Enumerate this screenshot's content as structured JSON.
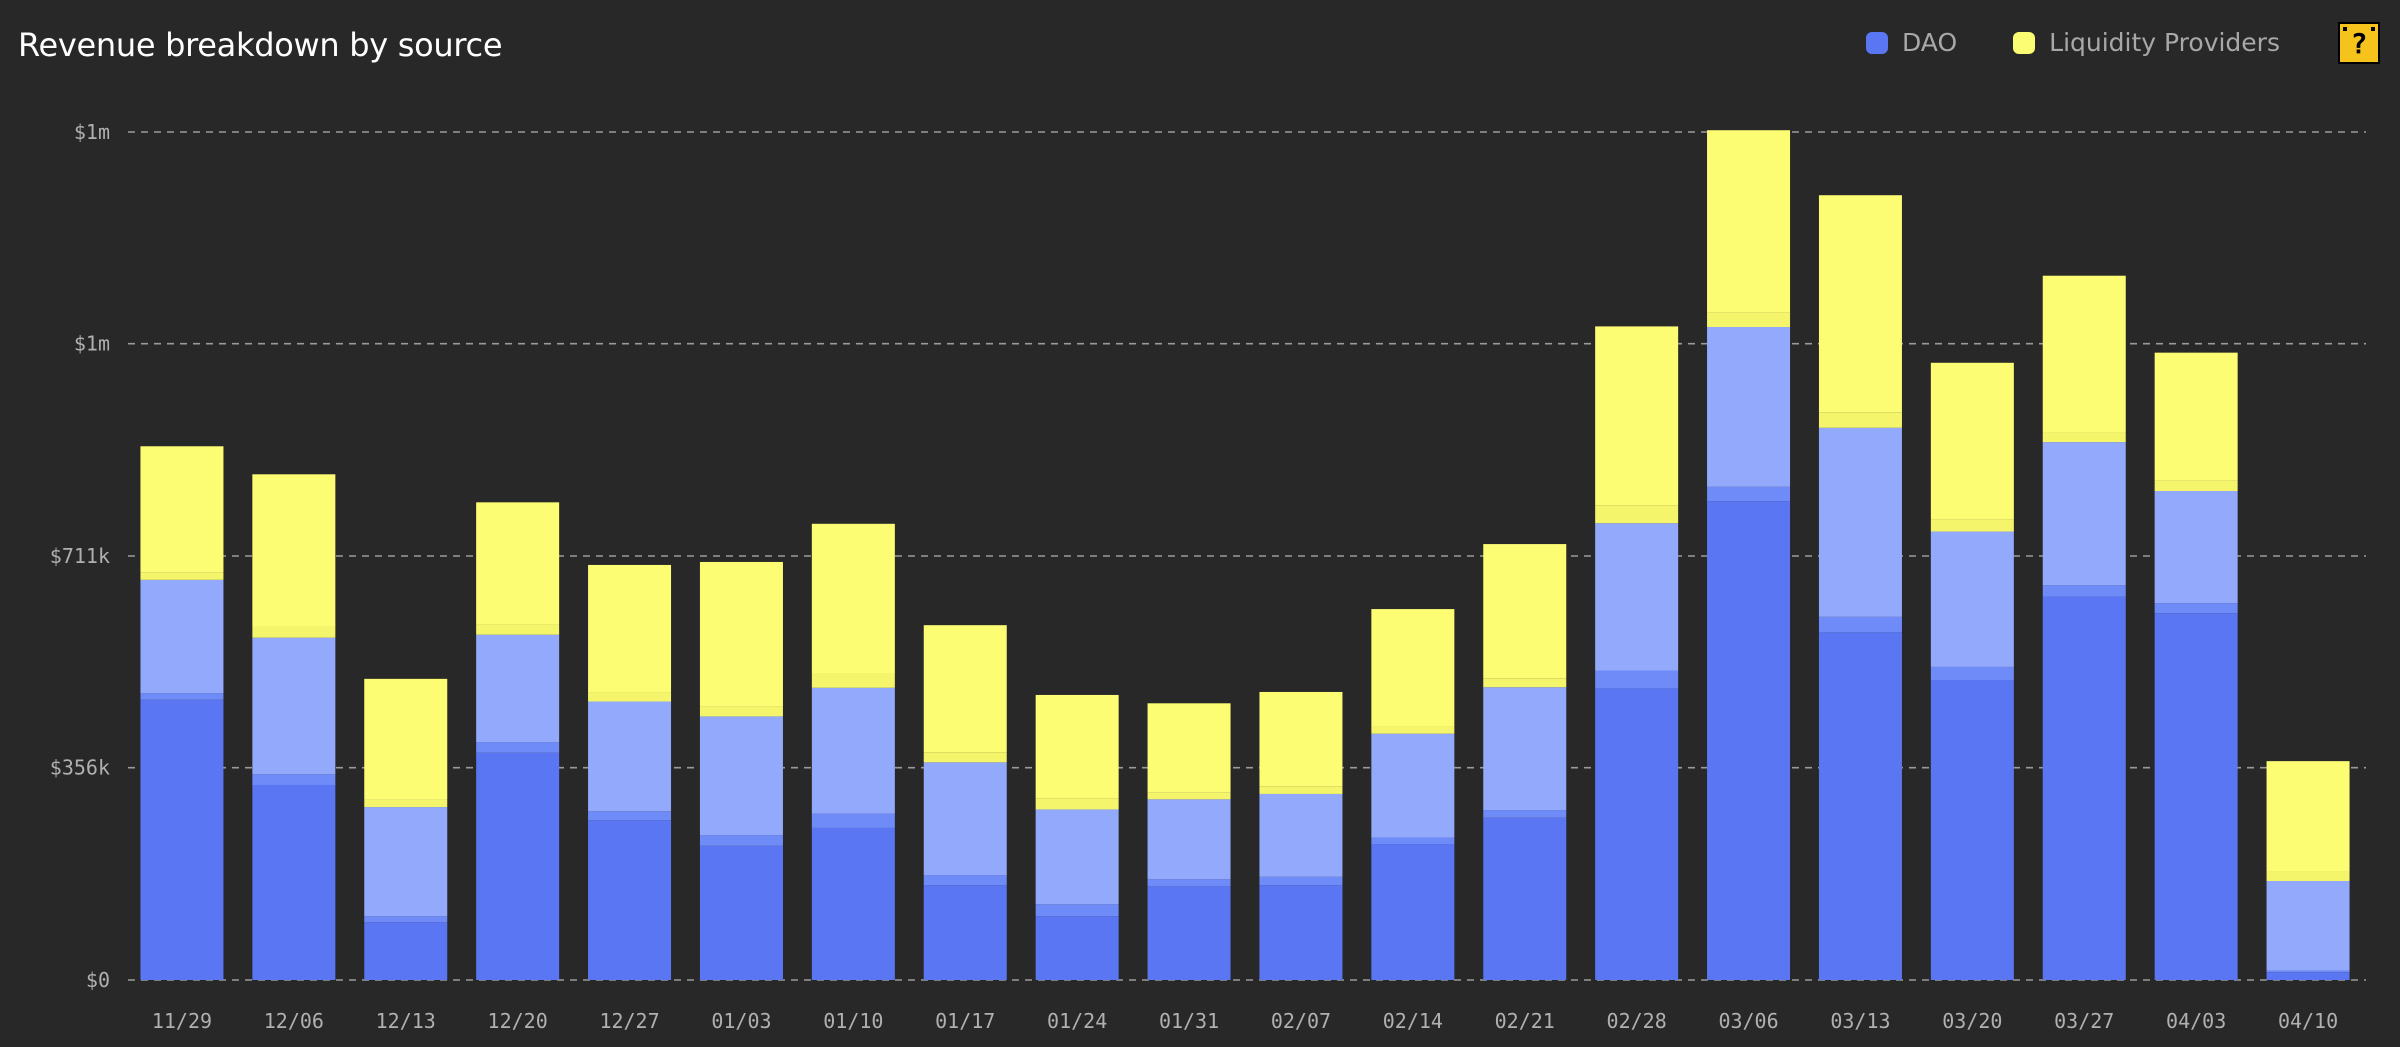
{
  "header": {
    "title": "Revenue breakdown by source",
    "help_icon": "question-block-icon"
  },
  "legend": [
    {
      "label": "DAO",
      "color": "#5a76f2"
    },
    {
      "label": "Liquidity Providers",
      "color": "#fdfd74"
    }
  ],
  "colors": {
    "background": "#282828",
    "dao_dark": "#5a76f2",
    "dao_mid": "#6e8bf8",
    "dao_light": "#92a9fc",
    "lp_light": "#f4f56a",
    "lp": "#fdfd74",
    "grid": "#9a9a9a"
  },
  "chart_data": {
    "type": "bar",
    "stacked": true,
    "categories": [
      "11/29",
      "12/06",
      "12/13",
      "12/20",
      "12/27",
      "01/03",
      "01/10",
      "01/17",
      "01/24",
      "01/31",
      "02/07",
      "02/14",
      "02/21",
      "02/28",
      "03/06",
      "03/13",
      "03/20",
      "03/27",
      "04/03",
      "04/10"
    ],
    "series": [
      {
        "name": "DAO",
        "color": "#5a76f2",
        "values": [
          470,
          327,
          97,
          381,
          268,
          225,
          255,
          159,
          107,
          157,
          159,
          228,
          272,
          489,
          803,
          583,
          503,
          643,
          615,
          13
        ]
      },
      {
        "name": "",
        "color": "#6e8bf8",
        "values": [
          11,
          18,
          10,
          18,
          15,
          18,
          24,
          17,
          20,
          12,
          14,
          11,
          13,
          30,
          24,
          26,
          22,
          19,
          17,
          3
        ]
      },
      {
        "name": "",
        "color": "#92a9fc",
        "values": [
          190,
          229,
          183,
          180,
          184,
          199,
          211,
          189,
          159,
          134,
          139,
          174,
          206,
          247,
          268,
          317,
          227,
          240,
          188,
          150
        ]
      },
      {
        "name": "",
        "color": "#f4f56a",
        "values": [
          12,
          18,
          12,
          17,
          15,
          16,
          24,
          17,
          19,
          11,
          13,
          12,
          15,
          30,
          25,
          26,
          20,
          16,
          17,
          16
        ]
      },
      {
        "name": "Liquidity Providers",
        "color": "#fdfd74",
        "values": [
          212,
          256,
          203,
          205,
          214,
          243,
          251,
          213,
          173,
          150,
          158,
          197,
          225,
          300,
          305,
          364,
          263,
          263,
          215,
          185
        ]
      }
    ],
    "y_ticks": [
      {
        "value": 0,
        "label": "$0"
      },
      {
        "value": 356,
        "label": "$356k"
      },
      {
        "value": 711,
        "label": "$711k"
      },
      {
        "value": 1067,
        "label": "$1m"
      },
      {
        "value": 1422,
        "label": "$1m"
      }
    ],
    "ylim": [
      0,
      1422
    ],
    "xlabel": "",
    "ylabel": "",
    "grid": true,
    "legend_position": "top-right"
  }
}
